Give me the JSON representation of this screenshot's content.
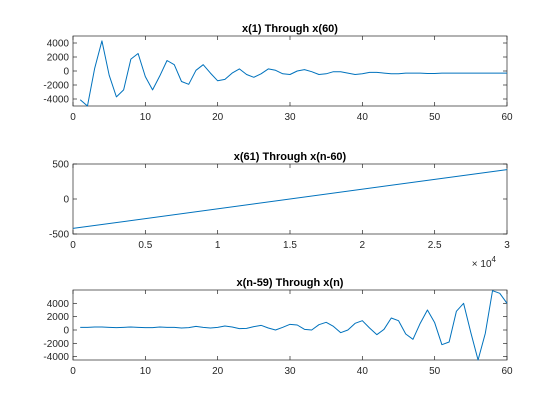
{
  "chart_data": [
    {
      "type": "line",
      "title": "x(1) Through x(60)",
      "xlabel": "",
      "ylabel": "",
      "xlim": [
        0,
        60
      ],
      "ylim": [
        -5000,
        5000
      ],
      "xticks": [
        0,
        10,
        20,
        30,
        40,
        50,
        60
      ],
      "xtick_labels": [
        "0",
        "10",
        "20",
        "30",
        "40",
        "50",
        "60"
      ],
      "yticks": [
        -4000,
        -2000,
        0,
        2000,
        4000
      ],
      "ytick_labels": [
        "-4000",
        "-2000",
        "0",
        "2000",
        "4000"
      ],
      "grid": false,
      "color": "#0072BD",
      "x": [
        1,
        2,
        3,
        4,
        5,
        6,
        7,
        8,
        9,
        10,
        11,
        12,
        13,
        14,
        15,
        16,
        17,
        18,
        19,
        20,
        21,
        22,
        23,
        24,
        25,
        26,
        27,
        28,
        29,
        30,
        31,
        32,
        33,
        34,
        35,
        36,
        37,
        38,
        39,
        40,
        41,
        42,
        43,
        44,
        45,
        46,
        47,
        48,
        49,
        50,
        51,
        52,
        53,
        54,
        55,
        56,
        57,
        58,
        59,
        60
      ],
      "y": [
        -4100,
        -5000,
        400,
        4300,
        -600,
        -3700,
        -2700,
        1700,
        2500,
        -800,
        -2700,
        -700,
        1500,
        900,
        -1500,
        -1900,
        100,
        900,
        -300,
        -1400,
        -1200,
        -300,
        300,
        -500,
        -900,
        -400,
        300,
        100,
        -400,
        -500,
        0,
        200,
        -100,
        -500,
        -400,
        -100,
        -100,
        -300,
        -500,
        -400,
        -200,
        -200,
        -300,
        -400,
        -400,
        -300,
        -300,
        -300,
        -350,
        -350,
        -300,
        -300,
        -300,
        -300,
        -300,
        -300,
        -300,
        -300,
        -300,
        -300
      ]
    },
    {
      "type": "line",
      "title": "x(61) Through x(n-60)",
      "xlabel": "",
      "ylabel": "",
      "xlim": [
        0,
        30000
      ],
      "ylim": [
        -500,
        500
      ],
      "xticks": [
        0,
        5000,
        10000,
        15000,
        20000,
        25000,
        30000
      ],
      "xtick_labels": [
        "0",
        "0.5",
        "1",
        "1.5",
        "2",
        "2.5",
        "3"
      ],
      "x_exponent_label": "× 10",
      "x_exponent_power": "4",
      "yticks": [
        -500,
        0,
        500
      ],
      "ytick_labels": [
        "-500",
        "0",
        "500"
      ],
      "grid": false,
      "color": "#0072BD",
      "x": [
        0,
        30000
      ],
      "y": [
        -420,
        420
      ]
    },
    {
      "type": "line",
      "title": "x(n-59) Through x(n)",
      "xlabel": "",
      "ylabel": "",
      "xlim": [
        0,
        60
      ],
      "ylim": [
        -4500,
        6000
      ],
      "xticks": [
        0,
        10,
        20,
        30,
        40,
        50,
        60
      ],
      "xtick_labels": [
        "0",
        "10",
        "20",
        "30",
        "40",
        "50",
        "60"
      ],
      "yticks": [
        -4000,
        -2000,
        0,
        2000,
        4000
      ],
      "ytick_labels": [
        "-4000",
        "-2000",
        "0",
        "2000",
        "4000"
      ],
      "grid": false,
      "color": "#0072BD",
      "x": [
        1,
        2,
        3,
        4,
        5,
        6,
        7,
        8,
        9,
        10,
        11,
        12,
        13,
        14,
        15,
        16,
        17,
        18,
        19,
        20,
        21,
        22,
        23,
        24,
        25,
        26,
        27,
        28,
        29,
        30,
        31,
        32,
        33,
        34,
        35,
        36,
        37,
        38,
        39,
        40,
        41,
        42,
        43,
        44,
        45,
        46,
        47,
        48,
        49,
        50,
        51,
        52,
        53,
        54,
        55,
        56,
        57,
        58,
        59,
        60
      ],
      "y": [
        400,
        400,
        450,
        450,
        400,
        350,
        400,
        450,
        400,
        350,
        350,
        450,
        400,
        400,
        300,
        350,
        550,
        400,
        300,
        400,
        600,
        450,
        200,
        250,
        500,
        700,
        300,
        0,
        400,
        850,
        750,
        100,
        0,
        800,
        1150,
        550,
        -400,
        0,
        1000,
        1400,
        300,
        -700,
        100,
        1800,
        1400,
        -600,
        -1400,
        1000,
        3000,
        1100,
        -2200,
        -1800,
        2800,
        4000,
        -400,
        -4500,
        -500,
        5900,
        5500,
        4000
      ]
    }
  ]
}
